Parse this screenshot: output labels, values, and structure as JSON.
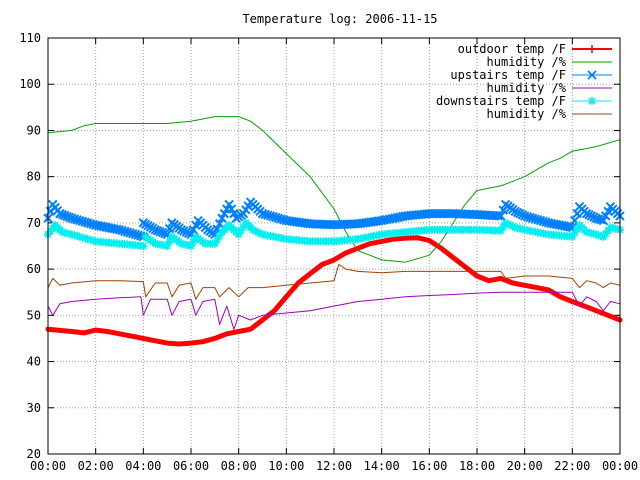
{
  "chart_data": {
    "type": "line",
    "title": "Temperature log: 2006-11-15",
    "xlabel": "",
    "ylabel": "",
    "xlim": [
      0,
      24
    ],
    "ylim": [
      20,
      110
    ],
    "grid": true,
    "legend_position": "top-right",
    "x_ticks": [
      "00:00",
      "02:00",
      "04:00",
      "06:00",
      "08:00",
      "10:00",
      "12:00",
      "14:00",
      "16:00",
      "18:00",
      "20:00",
      "22:00",
      "00:00"
    ],
    "y_ticks": [
      "20",
      "30",
      "40",
      "50",
      "60",
      "70",
      "80",
      "90",
      "100",
      "110"
    ],
    "series": [
      {
        "name": "outdoor temp /F",
        "color": "#ff0000",
        "style": "thick-line",
        "points": [
          [
            0,
            47
          ],
          [
            1,
            46.5
          ],
          [
            1.5,
            46.2
          ],
          [
            2,
            46.8
          ],
          [
            2.5,
            46.5
          ],
          [
            3,
            46
          ],
          [
            3.5,
            45.5
          ],
          [
            4,
            45
          ],
          [
            4.5,
            44.5
          ],
          [
            5,
            44
          ],
          [
            5.5,
            43.8
          ],
          [
            6,
            44
          ],
          [
            6.5,
            44.3
          ],
          [
            7,
            45
          ],
          [
            7.5,
            46
          ],
          [
            8,
            46.5
          ],
          [
            8.5,
            47
          ],
          [
            9,
            49
          ],
          [
            9.5,
            51
          ],
          [
            10,
            54
          ],
          [
            10.5,
            57
          ],
          [
            11,
            59
          ],
          [
            11.5,
            61
          ],
          [
            12,
            62
          ],
          [
            12.5,
            63.5
          ],
          [
            13,
            64.5
          ],
          [
            13.5,
            65.5
          ],
          [
            14,
            66
          ],
          [
            14.5,
            66.5
          ],
          [
            15,
            66.7
          ],
          [
            15.5,
            66.8
          ],
          [
            16,
            66.2
          ],
          [
            16.5,
            64.5
          ],
          [
            17,
            62.5
          ],
          [
            17.5,
            60.5
          ],
          [
            18,
            58.5
          ],
          [
            18.5,
            57.5
          ],
          [
            19,
            58
          ],
          [
            19.5,
            57
          ],
          [
            20,
            56.5
          ],
          [
            20.5,
            56
          ],
          [
            21,
            55.5
          ],
          [
            21.5,
            54
          ],
          [
            22,
            53
          ],
          [
            22.5,
            52
          ],
          [
            23,
            51
          ],
          [
            23.5,
            50
          ],
          [
            24,
            49
          ]
        ]
      },
      {
        "name": "humidity /%",
        "color": "#00a000",
        "style": "thin-line",
        "points": [
          [
            0,
            89.5
          ],
          [
            1,
            90
          ],
          [
            1.5,
            91
          ],
          [
            2,
            91.5
          ],
          [
            3,
            91.5
          ],
          [
            4,
            91.5
          ],
          [
            5,
            91.5
          ],
          [
            6,
            92
          ],
          [
            7,
            93
          ],
          [
            8,
            93
          ],
          [
            8.5,
            92
          ],
          [
            9,
            90
          ],
          [
            10,
            85
          ],
          [
            11,
            80
          ],
          [
            12,
            73
          ],
          [
            12.5,
            68
          ],
          [
            13,
            64
          ],
          [
            13.5,
            63
          ],
          [
            14,
            62
          ],
          [
            15,
            61.5
          ],
          [
            16,
            63
          ],
          [
            16.5,
            66
          ],
          [
            17,
            70
          ],
          [
            17.5,
            74
          ],
          [
            18,
            77
          ],
          [
            19,
            78
          ],
          [
            19.5,
            79
          ],
          [
            20,
            80
          ],
          [
            20.5,
            81.5
          ],
          [
            21,
            83
          ],
          [
            21.5,
            84
          ],
          [
            22,
            85.5
          ],
          [
            23,
            86.5
          ],
          [
            24,
            88
          ]
        ]
      },
      {
        "name": "upstairs temp /F",
        "color": "#0080ff",
        "style": "points",
        "points": [
          [
            0,
            71
          ],
          [
            0.2,
            74
          ],
          [
            0.5,
            72
          ],
          [
            1,
            71
          ],
          [
            2,
            69.5
          ],
          [
            3,
            68.5
          ],
          [
            4,
            67
          ],
          [
            4,
            70
          ],
          [
            4.5,
            68.5
          ],
          [
            5,
            67.5
          ],
          [
            5.2,
            70
          ],
          [
            5.6,
            68.5
          ],
          [
            6,
            67.5
          ],
          [
            6.3,
            70.5
          ],
          [
            6.7,
            68.5
          ],
          [
            7,
            67.5
          ],
          [
            7.3,
            71
          ],
          [
            7.6,
            74
          ],
          [
            7.9,
            71
          ],
          [
            8.2,
            72
          ],
          [
            8.5,
            74.5
          ],
          [
            9,
            72
          ],
          [
            10,
            70.5
          ],
          [
            11,
            69.8
          ],
          [
            12,
            69.6
          ],
          [
            13,
            69.8
          ],
          [
            14,
            70.5
          ],
          [
            15,
            71.5
          ],
          [
            16,
            72
          ],
          [
            17,
            72
          ],
          [
            18,
            71.8
          ],
          [
            19,
            71.5
          ],
          [
            19.2,
            74
          ],
          [
            19.6,
            72.5
          ],
          [
            20,
            71.5
          ],
          [
            21,
            70
          ],
          [
            22,
            69
          ],
          [
            22.3,
            73.5
          ],
          [
            22.6,
            72
          ],
          [
            23,
            71
          ],
          [
            23.3,
            70.5
          ],
          [
            23.6,
            73.5
          ],
          [
            24,
            71.5
          ]
        ]
      },
      {
        "name": "humidity /%",
        "color": "#a000c0",
        "style": "thin-line",
        "points": [
          [
            0,
            52
          ],
          [
            0.2,
            50
          ],
          [
            0.5,
            52.5
          ],
          [
            1,
            53
          ],
          [
            2,
            53.5
          ],
          [
            3,
            53.8
          ],
          [
            3.9,
            54
          ],
          [
            4,
            50
          ],
          [
            4.3,
            53.5
          ],
          [
            5,
            53.5
          ],
          [
            5.2,
            50
          ],
          [
            5.5,
            53
          ],
          [
            6,
            53.5
          ],
          [
            6.2,
            50
          ],
          [
            6.5,
            53
          ],
          [
            7,
            53.5
          ],
          [
            7.2,
            48
          ],
          [
            7.5,
            52
          ],
          [
            7.8,
            47
          ],
          [
            8,
            50
          ],
          [
            8.5,
            49
          ],
          [
            9,
            50
          ],
          [
            10,
            50.5
          ],
          [
            11,
            51
          ],
          [
            12,
            52
          ],
          [
            13,
            53
          ],
          [
            14,
            53.5
          ],
          [
            15,
            54
          ],
          [
            16,
            54.3
          ],
          [
            17,
            54.5
          ],
          [
            18,
            54.8
          ],
          [
            19,
            55
          ],
          [
            20,
            55
          ],
          [
            21,
            55
          ],
          [
            22,
            55
          ],
          [
            22.3,
            52
          ],
          [
            22.6,
            54
          ],
          [
            23,
            53
          ],
          [
            23.3,
            51
          ],
          [
            23.6,
            53
          ],
          [
            24,
            52.5
          ]
        ]
      },
      {
        "name": "downstairs temp /F",
        "color": "#00f0f0",
        "style": "points",
        "points": [
          [
            0,
            67.5
          ],
          [
            0.3,
            69.5
          ],
          [
            0.6,
            68
          ],
          [
            1,
            67.5
          ],
          [
            2,
            66
          ],
          [
            3,
            65.5
          ],
          [
            4,
            65
          ],
          [
            4.1,
            67
          ],
          [
            4.5,
            65.5
          ],
          [
            5,
            65
          ],
          [
            5.2,
            67
          ],
          [
            5.6,
            65.5
          ],
          [
            6,
            65
          ],
          [
            6.2,
            67
          ],
          [
            6.6,
            65.5
          ],
          [
            7,
            65.5
          ],
          [
            7.3,
            68
          ],
          [
            7.6,
            69.5
          ],
          [
            8,
            67.5
          ],
          [
            8.3,
            70
          ],
          [
            8.6,
            68.5
          ],
          [
            9,
            67.5
          ],
          [
            10,
            66.5
          ],
          [
            11,
            66
          ],
          [
            12,
            66
          ],
          [
            13,
            66.5
          ],
          [
            14,
            67.5
          ],
          [
            15,
            68
          ],
          [
            16,
            68.5
          ],
          [
            17,
            68.5
          ],
          [
            18,
            68.5
          ],
          [
            19,
            68.3
          ],
          [
            19.2,
            70
          ],
          [
            19.6,
            69
          ],
          [
            20,
            68.5
          ],
          [
            21,
            67.5
          ],
          [
            22,
            67
          ],
          [
            22.3,
            69.5
          ],
          [
            22.6,
            68
          ],
          [
            23,
            67.5
          ],
          [
            23.3,
            67
          ],
          [
            23.6,
            69
          ],
          [
            24,
            68.5
          ]
        ]
      },
      {
        "name": "humidity /%",
        "color": "#a04000",
        "style": "thin-line",
        "points": [
          [
            0,
            56
          ],
          [
            0.2,
            58
          ],
          [
            0.5,
            56.5
          ],
          [
            1,
            57
          ],
          [
            2,
            57.5
          ],
          [
            3,
            57.5
          ],
          [
            4,
            57.3
          ],
          [
            4.1,
            54
          ],
          [
            4.5,
            57
          ],
          [
            5,
            57
          ],
          [
            5.2,
            54
          ],
          [
            5.5,
            56.5
          ],
          [
            6,
            57
          ],
          [
            6.2,
            53.5
          ],
          [
            6.5,
            56
          ],
          [
            7,
            56
          ],
          [
            7.2,
            54
          ],
          [
            7.6,
            56
          ],
          [
            8,
            54
          ],
          [
            8.4,
            56
          ],
          [
            9,
            56
          ],
          [
            10,
            56.5
          ],
          [
            11,
            57
          ],
          [
            12,
            57.5
          ],
          [
            12.2,
            61
          ],
          [
            12.5,
            60
          ],
          [
            13,
            59.5
          ],
          [
            14,
            59.2
          ],
          [
            15,
            59.5
          ],
          [
            16,
            59.5
          ],
          [
            17,
            59.5
          ],
          [
            18,
            59.5
          ],
          [
            19,
            59.5
          ],
          [
            19.2,
            58
          ],
          [
            20,
            58.5
          ],
          [
            21,
            58.5
          ],
          [
            22,
            58
          ],
          [
            22.3,
            56
          ],
          [
            22.6,
            57.5
          ],
          [
            23,
            57
          ],
          [
            23.3,
            56
          ],
          [
            23.6,
            57
          ],
          [
            24,
            56.5
          ]
        ]
      }
    ]
  }
}
